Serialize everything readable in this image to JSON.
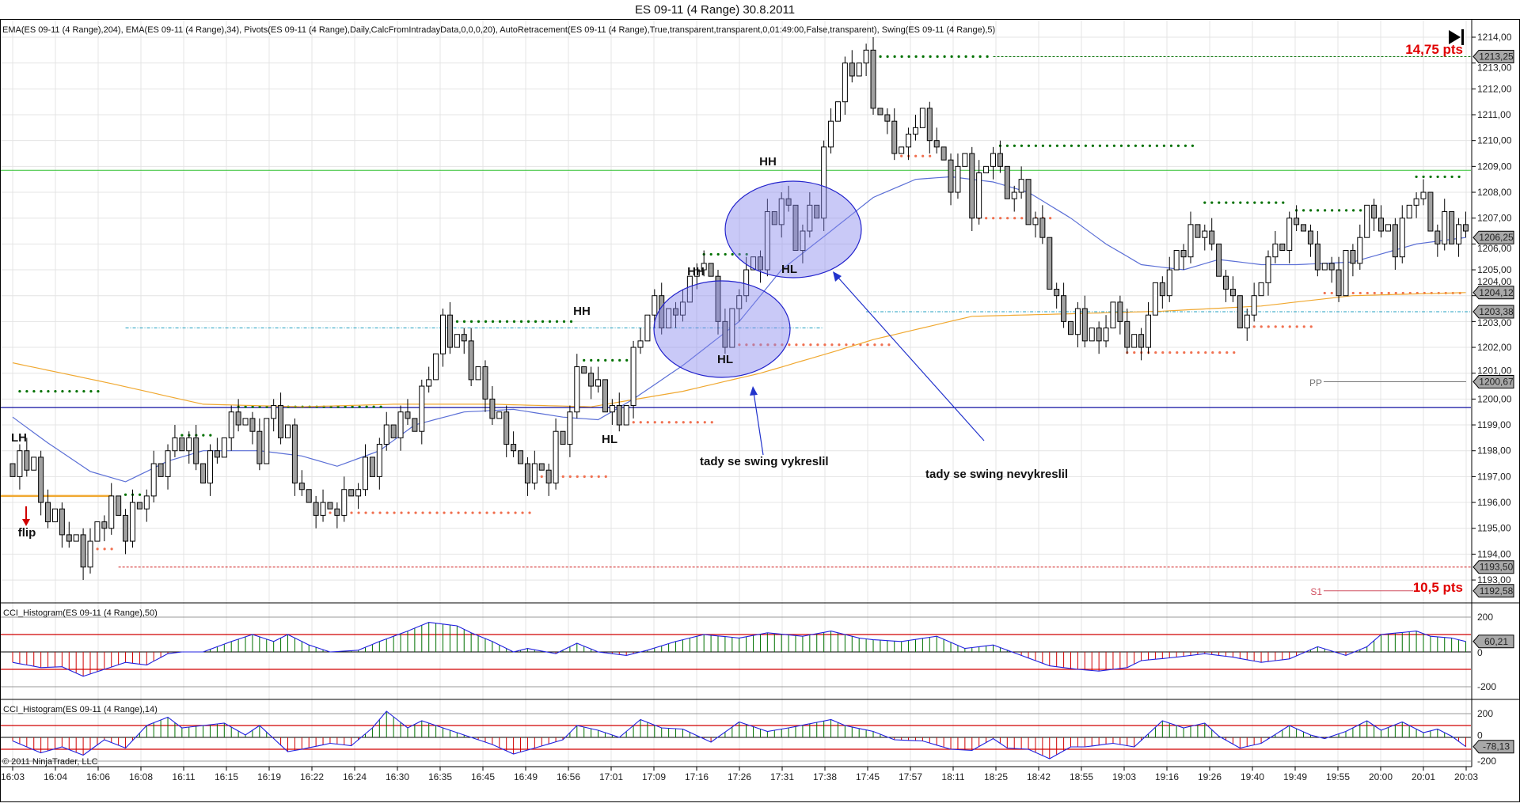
{
  "header": {
    "title": "ES 09-11 (4 Range)  30.8.2011",
    "indicators": "EMA(ES 09-11 (4 Range),204), EMA(ES 09-11 (4 Range),34), Pivots(ES 09-11 (4 Range),Daily,CalcFromIntradayData,0,0,0,20), AutoRetracement(ES 09-11 (4 Range),True,transparent,transparent,0,01:49:00,False,transparent), Swing(ES 09-11 (4 Range),5)"
  },
  "annotations": {
    "hh1": "HH",
    "hh2": "HH",
    "hh3": "HH",
    "hl1": "HL",
    "hl2": "HL",
    "hl3": "HL",
    "lh": "LH",
    "flip": "flip",
    "note_drawn": "tady se swing vykreslil",
    "note_not_drawn": "tady se swing nevykreslil",
    "range_top": "14,75 pts",
    "range_bottom": "10,5 pts",
    "pp": "PP",
    "s1": "S1"
  },
  "price_tags": {
    "high": "1213,25",
    "last": "1206,25",
    "ema204": "1204,12",
    "retr": "1203,38",
    "pp": "1200,67",
    "low": "1193,50",
    "s1": "1192,58",
    "cci50": "60,21",
    "cci14": "-78,13"
  },
  "panels": {
    "cci50_label": "CCI_Histogram(ES 09-11 (4 Range),50)",
    "cci14_label": "CCI_Histogram(ES 09-11 (4 Range),14)",
    "copyright": "© 2011 NinjaTrader, LLC",
    "cci_ticks": [
      "200",
      "0",
      "-200"
    ]
  },
  "colors": {
    "ema34": "#5b6fd6",
    "ema204": "#f0a830",
    "swing_high": "#007000",
    "swing_low": "#f07050",
    "cci_pos": "#007000",
    "cci_neg": "#d00000",
    "cci_line": "#2020e0",
    "ellipse": "#8888ee"
  },
  "chart_data": {
    "type": "candlestick",
    "title": "ES 09-11 (4 Range)  30.8.2011",
    "bar_count": 207,
    "ylim": [
      1192,
      1214.5
    ],
    "y_ticks": [
      "1193,00",
      "1194,00",
      "1195,00",
      "1196,00",
      "1197,00",
      "1198,00",
      "1199,00",
      "1200,00",
      "1201,00",
      "1202,00",
      "1203,00",
      "1204,00",
      "1205,00",
      "1206,00",
      "1207,00",
      "1208,00",
      "1209,00",
      "1210,00",
      "1211,00",
      "1212,00",
      "1213,00",
      "1214,00"
    ],
    "x_ticks": [
      "16:03",
      "16:04",
      "16:06",
      "16:08",
      "16:11",
      "16:15",
      "16:19",
      "16:22",
      "16:24",
      "16:30",
      "16:35",
      "16:45",
      "16:49",
      "16:56",
      "17:01",
      "17:09",
      "17:16",
      "17:26",
      "17:31",
      "17:38",
      "17:45",
      "17:57",
      "18:11",
      "18:25",
      "18:42",
      "18:55",
      "19:03",
      "19:16",
      "19:26",
      "19:40",
      "19:49",
      "19:55",
      "20:00",
      "20:01",
      "20:03"
    ],
    "price_path": [
      [
        0,
        1197.5
      ],
      [
        2,
        1197.8
      ],
      [
        4,
        1196
      ],
      [
        10,
        1194
      ],
      [
        14,
        1196
      ],
      [
        16,
        1195
      ],
      [
        20,
        1197
      ],
      [
        24,
        1198.5
      ],
      [
        27,
        1197
      ],
      [
        32,
        1199.5
      ],
      [
        35,
        1198
      ],
      [
        37,
        1199.5
      ],
      [
        41,
        1196.5
      ],
      [
        44,
        1195.8
      ],
      [
        47,
        1196
      ],
      [
        51,
        1197.5
      ],
      [
        54,
        1199.5
      ],
      [
        57,
        1199
      ],
      [
        61,
        1202.8
      ],
      [
        64,
        1202
      ],
      [
        67,
        1200
      ],
      [
        72,
        1197.5
      ],
      [
        75,
        1197
      ],
      [
        78,
        1199
      ],
      [
        81,
        1201.5
      ],
      [
        84,
        1200
      ],
      [
        86,
        1199
      ],
      [
        88,
        1201.5
      ],
      [
        90,
        1203.5
      ],
      [
        94,
        1203
      ],
      [
        98,
        1205.5
      ],
      [
        101,
        1202
      ],
      [
        103,
        1204
      ],
      [
        106,
        1206
      ],
      [
        109,
        1208
      ],
      [
        111,
        1206
      ],
      [
        114,
        1207.5
      ],
      [
        115,
        1209.5
      ],
      [
        117,
        1212
      ],
      [
        120,
        1213.2
      ],
      [
        123,
        1211
      ],
      [
        126,
        1209.5
      ],
      [
        128,
        1211
      ],
      [
        131,
        1210
      ],
      [
        133,
        1208.5
      ],
      [
        135,
        1208.8
      ],
      [
        136,
        1207.5
      ],
      [
        139,
        1209.8
      ],
      [
        141,
        1208
      ],
      [
        143,
        1208
      ],
      [
        146,
        1206
      ],
      [
        148,
        1203.5
      ],
      [
        151,
        1203
      ],
      [
        154,
        1202
      ],
      [
        156,
        1203.5
      ],
      [
        159,
        1202
      ],
      [
        161,
        1203.5
      ],
      [
        164,
        1205
      ],
      [
        167,
        1206.5
      ],
      [
        169,
        1207
      ],
      [
        171,
        1205
      ],
      [
        173,
        1203.5
      ],
      [
        175,
        1203
      ],
      [
        177,
        1204.5
      ],
      [
        180,
        1206
      ],
      [
        182,
        1207
      ],
      [
        186,
        1205
      ],
      [
        188,
        1204.5
      ],
      [
        190,
        1206
      ],
      [
        193,
        1207.5
      ],
      [
        196,
        1206
      ],
      [
        199,
        1208.3
      ],
      [
        201,
        1206.8
      ],
      [
        205,
        1206.5
      ],
      [
        206,
        1206.3
      ]
    ],
    "ema34": [
      [
        0,
        1199.3
      ],
      [
        5,
        1198.3
      ],
      [
        11,
        1197.2
      ],
      [
        16,
        1196.8
      ],
      [
        22,
        1197.6
      ],
      [
        27,
        1198.0
      ],
      [
        35,
        1198.0
      ],
      [
        41,
        1197.8
      ],
      [
        46,
        1197.4
      ],
      [
        52,
        1198.0
      ],
      [
        57,
        1199.0
      ],
      [
        64,
        1199.5
      ],
      [
        71,
        1199.6
      ],
      [
        78,
        1199.3
      ],
      [
        83,
        1199.2
      ],
      [
        88,
        1200.0
      ],
      [
        95,
        1201.3
      ],
      [
        103,
        1203.0
      ],
      [
        109,
        1205.0
      ],
      [
        116,
        1206.5
      ],
      [
        122,
        1207.8
      ],
      [
        128,
        1208.5
      ],
      [
        133,
        1208.6
      ],
      [
        139,
        1208.4
      ],
      [
        144,
        1208.0
      ],
      [
        150,
        1207.0
      ],
      [
        155,
        1206.0
      ],
      [
        160,
        1205.2
      ],
      [
        166,
        1205.0
      ],
      [
        171,
        1205.4
      ],
      [
        177,
        1205.2
      ],
      [
        182,
        1205.2
      ],
      [
        190,
        1205.3
      ],
      [
        199,
        1206.0
      ],
      [
        206,
        1206.25
      ]
    ],
    "ema204": [
      [
        0,
        1201.4
      ],
      [
        14,
        1200.6
      ],
      [
        27,
        1199.8
      ],
      [
        41,
        1199.7
      ],
      [
        54,
        1199.8
      ],
      [
        68,
        1199.8
      ],
      [
        82,
        1199.7
      ],
      [
        95,
        1200.3
      ],
      [
        106,
        1201.0
      ],
      [
        116,
        1201.8
      ],
      [
        122,
        1202.3
      ],
      [
        136,
        1203.2
      ],
      [
        150,
        1203.3
      ],
      [
        163,
        1203.4
      ],
      [
        177,
        1203.6
      ],
      [
        190,
        1204.0
      ],
      [
        206,
        1204.12
      ]
    ],
    "swing_highs": [
      [
        1,
        13,
        1200.3
      ],
      [
        16,
        19,
        1196.3
      ],
      [
        24,
        29,
        1198.6
      ],
      [
        32,
        53,
        1199.7
      ],
      [
        61,
        80,
        1203.0
      ],
      [
        81,
        88,
        1201.5
      ],
      [
        98,
        105,
        1205.6
      ],
      [
        121,
        139,
        1213.25
      ],
      [
        140,
        168,
        1209.8
      ],
      [
        169,
        181,
        1207.6
      ],
      [
        182,
        192,
        1207.3
      ],
      [
        199,
        206,
        1208.6
      ]
    ],
    "swing_lows": [
      [
        10,
        15,
        1194.2
      ],
      [
        44,
        74,
        1195.6
      ],
      [
        75,
        85,
        1197.0
      ],
      [
        86,
        100,
        1199.1
      ],
      [
        101,
        125,
        1202.1
      ],
      [
        126,
        131,
        1209.4
      ],
      [
        137,
        148,
        1207.0
      ],
      [
        158,
        174,
        1201.8
      ],
      [
        175,
        185,
        1202.8
      ],
      [
        186,
        206,
        1204.1
      ]
    ],
    "levels": {
      "green_line": 1208.85,
      "blue_line": 1199.67,
      "high_dashed": 1213.25,
      "low_dashed": 1193.5,
      "pp": 1200.67,
      "s1": 1192.58,
      "retracement": 1203.38,
      "old_retracement": 1202.75
    },
    "cci50": [
      [
        0,
        -60
      ],
      [
        4,
        -90
      ],
      [
        7,
        -85
      ],
      [
        10,
        -140
      ],
      [
        13,
        -100
      ],
      [
        16,
        -60
      ],
      [
        19,
        -75
      ],
      [
        22,
        -10
      ],
      [
        24,
        0
      ],
      [
        27,
        0
      ],
      [
        31,
        60
      ],
      [
        34,
        100
      ],
      [
        37,
        60
      ],
      [
        39,
        100
      ],
      [
        42,
        40
      ],
      [
        45,
        0
      ],
      [
        49,
        10
      ],
      [
        52,
        60
      ],
      [
        56,
        120
      ],
      [
        59,
        170
      ],
      [
        63,
        150
      ],
      [
        65,
        110
      ],
      [
        68,
        60
      ],
      [
        71,
        0
      ],
      [
        73,
        20
      ],
      [
        77,
        -10
      ],
      [
        80,
        50
      ],
      [
        83,
        0
      ],
      [
        87,
        -20
      ],
      [
        90,
        10
      ],
      [
        94,
        60
      ],
      [
        98,
        100
      ],
      [
        103,
        80
      ],
      [
        107,
        110
      ],
      [
        112,
        90
      ],
      [
        116,
        120
      ],
      [
        120,
        80
      ],
      [
        122,
        70
      ],
      [
        126,
        60
      ],
      [
        131,
        90
      ],
      [
        135,
        20
      ],
      [
        139,
        40
      ],
      [
        143,
        -20
      ],
      [
        147,
        -80
      ],
      [
        151,
        -100
      ],
      [
        154,
        -110
      ],
      [
        158,
        -90
      ],
      [
        160,
        -50
      ],
      [
        165,
        -30
      ],
      [
        169,
        -10
      ],
      [
        173,
        -30
      ],
      [
        177,
        -60
      ],
      [
        181,
        -40
      ],
      [
        185,
        30
      ],
      [
        189,
        -20
      ],
      [
        192,
        30
      ],
      [
        194,
        100
      ],
      [
        199,
        120
      ],
      [
        201,
        90
      ],
      [
        204,
        80
      ],
      [
        206,
        60.21
      ]
    ],
    "cci14": [
      [
        0,
        -30
      ],
      [
        4,
        -130
      ],
      [
        7,
        -80
      ],
      [
        10,
        -150
      ],
      [
        13,
        -20
      ],
      [
        16,
        -90
      ],
      [
        19,
        100
      ],
      [
        22,
        170
      ],
      [
        24,
        80
      ],
      [
        30,
        120
      ],
      [
        33,
        20
      ],
      [
        35,
        100
      ],
      [
        39,
        -120
      ],
      [
        41,
        -100
      ],
      [
        45,
        -50
      ],
      [
        48,
        -70
      ],
      [
        51,
        80
      ],
      [
        53,
        220
      ],
      [
        56,
        80
      ],
      [
        58,
        140
      ],
      [
        62,
        60
      ],
      [
        65,
        0
      ],
      [
        68,
        -60
      ],
      [
        71,
        -140
      ],
      [
        74,
        -90
      ],
      [
        78,
        -20
      ],
      [
        80,
        100
      ],
      [
        83,
        60
      ],
      [
        86,
        0
      ],
      [
        89,
        150
      ],
      [
        92,
        80
      ],
      [
        95,
        70
      ],
      [
        99,
        -40
      ],
      [
        103,
        130
      ],
      [
        107,
        50
      ],
      [
        110,
        80
      ],
      [
        116,
        150
      ],
      [
        118,
        100
      ],
      [
        122,
        50
      ],
      [
        125,
        -20
      ],
      [
        129,
        -30
      ],
      [
        133,
        -100
      ],
      [
        136,
        -110
      ],
      [
        139,
        -10
      ],
      [
        141,
        -90
      ],
      [
        144,
        -100
      ],
      [
        147,
        -180
      ],
      [
        150,
        -80
      ],
      [
        152,
        -80
      ],
      [
        156,
        -50
      ],
      [
        159,
        -80
      ],
      [
        163,
        140
      ],
      [
        166,
        80
      ],
      [
        169,
        120
      ],
      [
        171,
        10
      ],
      [
        174,
        -90
      ],
      [
        177,
        -50
      ],
      [
        181,
        100
      ],
      [
        184,
        20
      ],
      [
        186,
        -10
      ],
      [
        189,
        50
      ],
      [
        192,
        140
      ],
      [
        194,
        60
      ],
      [
        197,
        130
      ],
      [
        200,
        40
      ],
      [
        202,
        70
      ],
      [
        204,
        10
      ],
      [
        206,
        -78.13
      ]
    ],
    "cci_levels": [
      200,
      100,
      0,
      -100,
      -200
    ]
  }
}
